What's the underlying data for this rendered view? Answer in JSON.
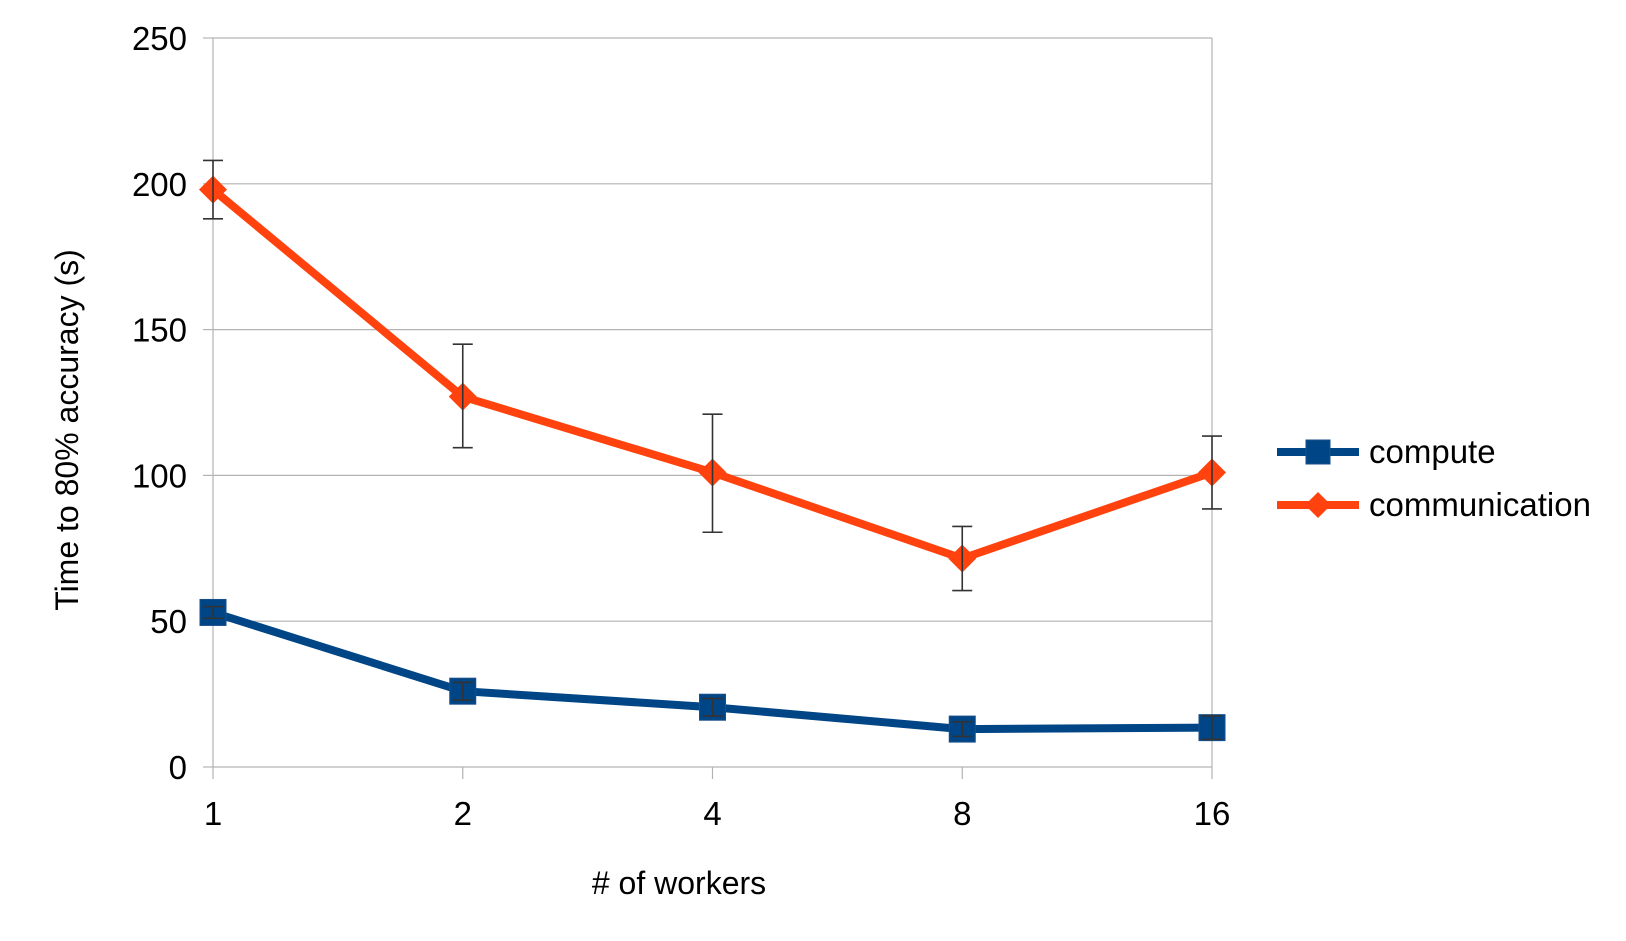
{
  "chart_data": {
    "type": "line",
    "categories": [
      "1",
      "2",
      "4",
      "8",
      "16"
    ],
    "xlabel": "# of workers",
    "ylabel": "Time to 80% accuracy (s)",
    "ylim": [
      0,
      250
    ],
    "yticks": [
      0,
      50,
      100,
      150,
      200,
      250
    ],
    "grid": "horizontal",
    "legend_position": "right",
    "series": [
      {
        "name": "compute",
        "color": "#004586",
        "marker": "square",
        "values": [
          53,
          26,
          20.5,
          13,
          13.5
        ],
        "error_low": [
          51,
          23,
          17.5,
          10.5,
          9.5
        ],
        "error_high": [
          55,
          29,
          23.5,
          15.5,
          17.5
        ]
      },
      {
        "name": "communication",
        "color": "#ff420e",
        "marker": "diamond",
        "values": [
          198,
          127,
          101,
          71.5,
          101
        ],
        "error_low": [
          188,
          109.5,
          80.5,
          60.5,
          88.5
        ],
        "error_high": [
          208,
          145,
          121,
          82.5,
          113.5
        ]
      }
    ]
  }
}
